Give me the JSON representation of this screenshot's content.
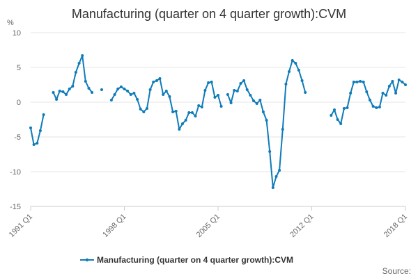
{
  "chart_data": {
    "type": "line",
    "title": "Manufacturing (quarter on 4 quarter growth):CVM",
    "ylabel": "%",
    "xlabel": "",
    "ylim": [
      -15,
      10
    ],
    "yticks": [
      10,
      5,
      0,
      -5,
      -10,
      -15
    ],
    "grid": true,
    "legend_position": "bottom",
    "x_tick_labels": [
      "1991 Q1",
      "1998 Q1",
      "2005 Q1",
      "2012 Q1",
      "2018 Q1"
    ],
    "start_period": "1991 Q1",
    "series": [
      {
        "name": "Manufacturing (quarter on 4 quarter growth):CVM",
        "color": "#0f7bb9",
        "values": [
          -3.7,
          -6.1,
          -5.9,
          -4.1,
          -1.8,
          null,
          null,
          1.4,
          0.4,
          1.6,
          1.5,
          1.1,
          1.9,
          2.3,
          4.3,
          5.6,
          6.7,
          3.0,
          2.0,
          1.4,
          null,
          null,
          1.8,
          null,
          null,
          0.3,
          1.1,
          1.9,
          2.2,
          1.9,
          1.6,
          1.1,
          1.3,
          0.4,
          -1.0,
          -1.4,
          -0.9,
          1.8,
          2.9,
          3.1,
          3.4,
          1.1,
          1.6,
          0.8,
          -1.4,
          -1.3,
          -3.9,
          -3.1,
          -2.6,
          -1.5,
          -1.5,
          -2.0,
          -0.5,
          -0.7,
          1.7,
          2.8,
          2.9,
          0.7,
          1.0,
          -0.6,
          null,
          1.1,
          -0.1,
          1.7,
          1.6,
          2.7,
          3.1,
          1.8,
          1.0,
          0.2,
          -0.2,
          0.3,
          -1.4,
          -2.6,
          -7.1,
          -12.3,
          -10.7,
          -9.8,
          -3.9,
          2.6,
          4.4,
          6.0,
          5.6,
          4.6,
          3.1,
          1.4,
          null,
          null,
          null,
          null,
          null,
          null,
          null,
          -1.9,
          -1.1,
          -2.5,
          -3.1,
          -0.9,
          -0.8,
          1.3,
          2.9,
          2.9,
          3.0,
          2.9,
          1.5,
          0.3,
          -0.6,
          -0.8,
          -0.7,
          1.3,
          1.0,
          2.3,
          3.0,
          1.3,
          3.2,
          2.9,
          2.5
        ]
      }
    ]
  },
  "footer": {
    "source_label": "Source:"
  }
}
